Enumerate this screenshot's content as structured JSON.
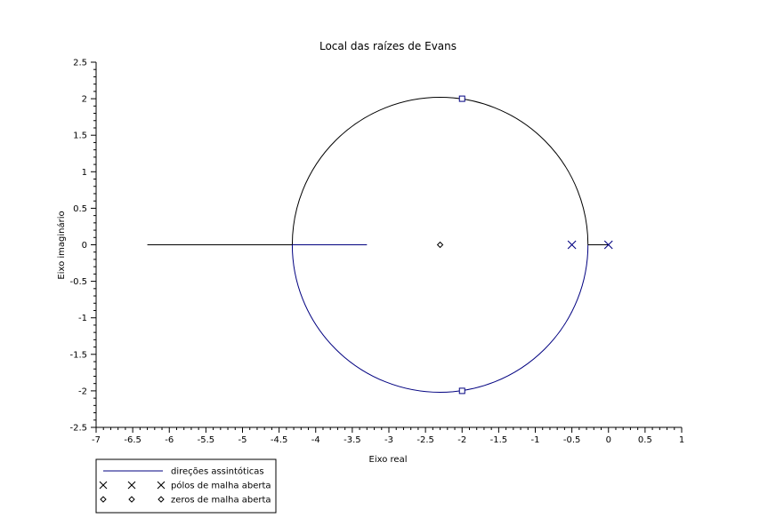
{
  "chart_data": {
    "type": "scatter",
    "title": "Local das raízes de Evans",
    "xlabel": "Eixo real",
    "ylabel": "Eixo imaginário",
    "xlim": [
      -7,
      1
    ],
    "ylim": [
      -2.5,
      2.5
    ],
    "x_ticks": [
      "-7",
      "-6.5",
      "-6",
      "-5.5",
      "-5",
      "-4.5",
      "-4",
      "-3.5",
      "-3",
      "-2.5",
      "-2",
      "-1.5",
      "-1",
      "-0.5",
      "0",
      "0.5",
      "1"
    ],
    "y_ticks": [
      "2.5",
      "2",
      "1.5",
      "1",
      "0.5",
      "0",
      "-0.5",
      "-1",
      "-1.5",
      "-2",
      "-2.5"
    ],
    "grid": false,
    "root_locus_circle": {
      "center": [
        -2.3,
        0
      ],
      "radius": 2.02
    },
    "real_axis_branch": [
      [
        -6.3,
        0
      ],
      [
        -4.32,
        0
      ]
    ],
    "real_axis_branch_2": [
      [
        -0.28,
        0
      ],
      [
        0,
        0
      ]
    ],
    "asymptote": [
      [
        -4.32,
        0
      ],
      [
        -3.3,
        0
      ]
    ],
    "open_loop_poles": [
      [
        -0.5,
        0
      ],
      [
        0,
        0
      ]
    ],
    "open_loop_zeros": [
      [
        -2.3,
        0
      ]
    ],
    "breakaway_markers": [
      [
        -2,
        2
      ],
      [
        -2,
        -2
      ]
    ],
    "legend": {
      "placement": "bottom-left",
      "entries": [
        {
          "label": "direções assintóticas",
          "marker": "line"
        },
        {
          "label": "pólos de malha aberta",
          "marker": "x"
        },
        {
          "label": "zeros de malha aberta",
          "marker": "diamond"
        }
      ]
    },
    "colors": {
      "locus": "#000080",
      "branch": "#000000",
      "axis": "#000000"
    }
  }
}
